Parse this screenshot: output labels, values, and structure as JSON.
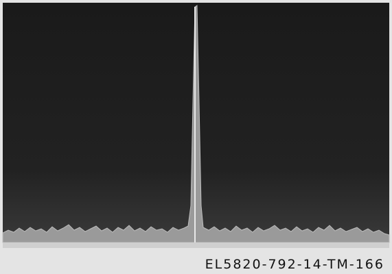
{
  "caption": "EL5820-792-14-TM-166"
}
